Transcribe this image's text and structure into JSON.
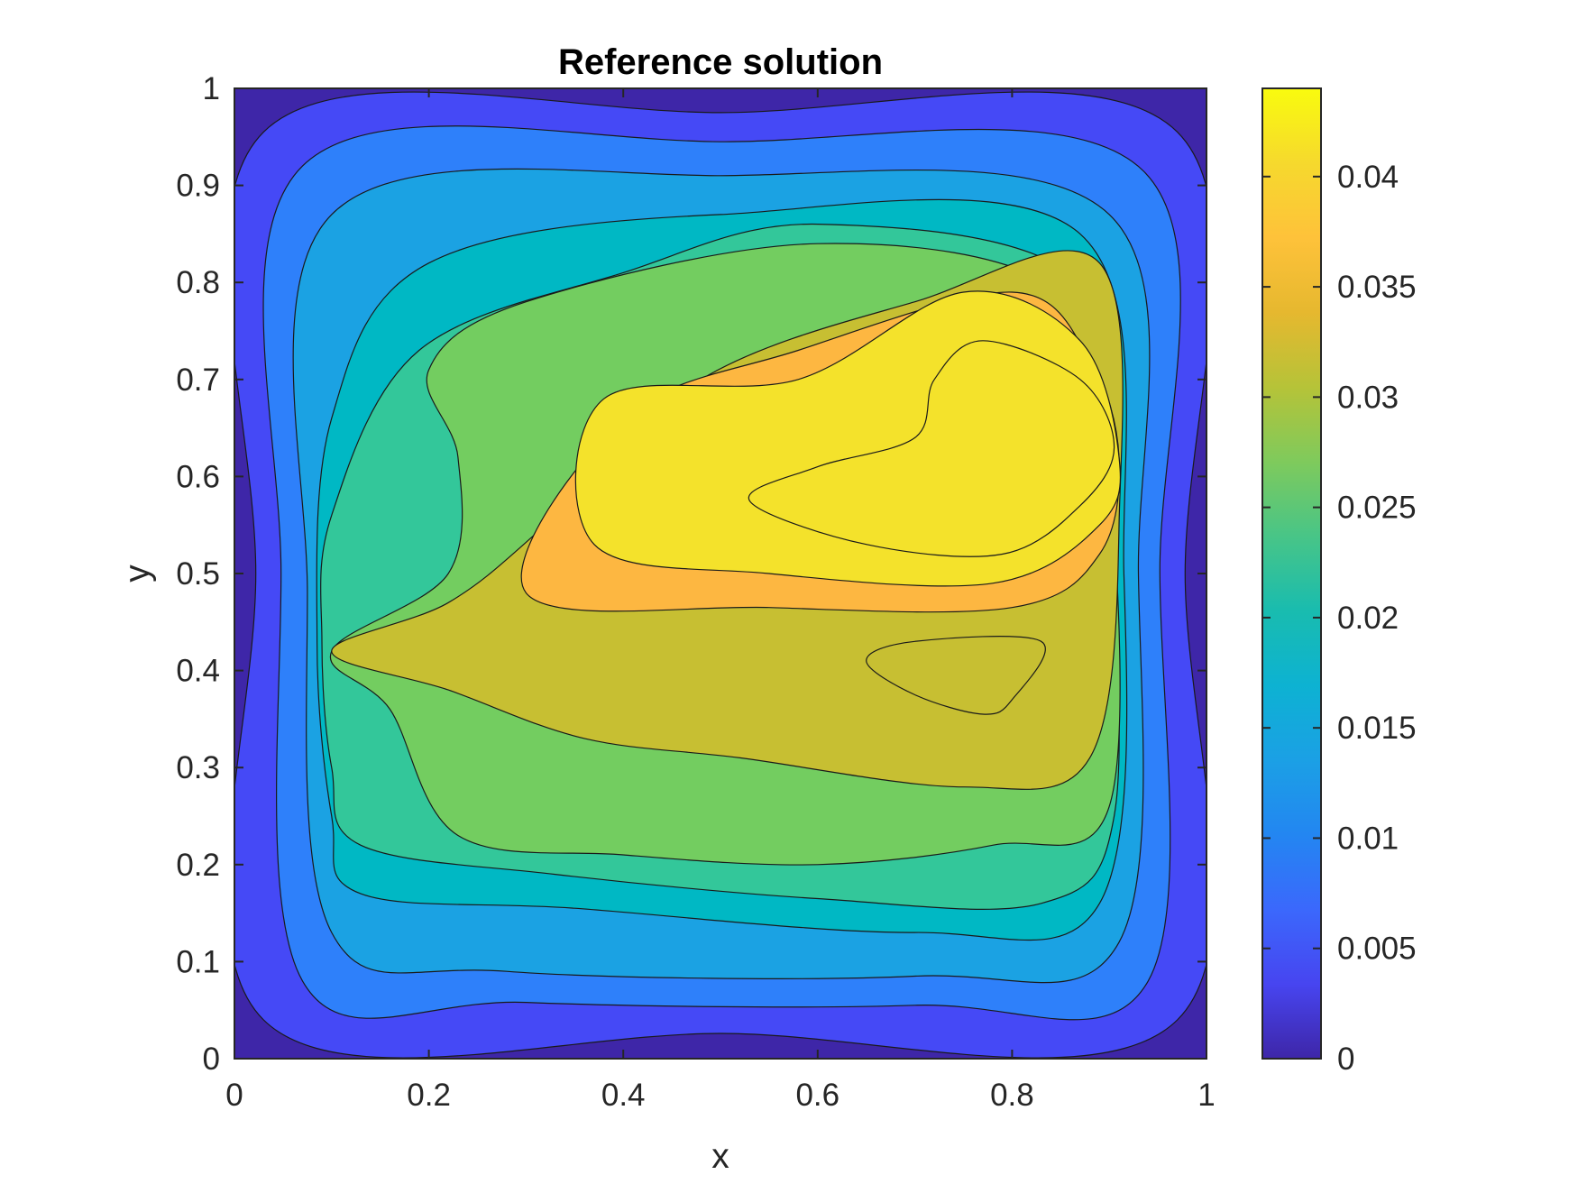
{
  "chart_data": {
    "type": "contour",
    "title": "Reference solution",
    "xlabel": "x",
    "ylabel": "y",
    "xlim": [
      0,
      1
    ],
    "ylim": [
      0,
      1
    ],
    "x_ticks": [
      "0",
      "0.2",
      "0.4",
      "0.6",
      "0.8",
      "1"
    ],
    "y_ticks": [
      "0",
      "0.1",
      "0.2",
      "0.3",
      "0.4",
      "0.5",
      "0.6",
      "0.7",
      "0.8",
      "0.9",
      "1"
    ],
    "colorbar": {
      "range": [
        0,
        0.044
      ],
      "ticks": [
        "0",
        "0.005",
        "0.01",
        "0.015",
        "0.02",
        "0.025",
        "0.03",
        "0.035",
        "0.04"
      ],
      "colormap": "parula"
    },
    "levels": [
      0,
      0.0044,
      0.0088,
      0.0132,
      0.0176,
      0.022,
      0.0264,
      0.0308,
      0.0352,
      0.0396
    ],
    "level_colors": [
      "#3e26a8",
      "#4549f6",
      "#2e80fa",
      "#1ba2e3",
      "#00b8c4",
      "#33c79a",
      "#73cd60",
      "#c7bf32",
      "#fdb741",
      "#f4e22b"
    ],
    "peak": {
      "x": 0.78,
      "y": 0.6,
      "value": 0.044
    },
    "secondary_max": {
      "x": 0.75,
      "y": 0.4,
      "value": 0.032
    }
  }
}
